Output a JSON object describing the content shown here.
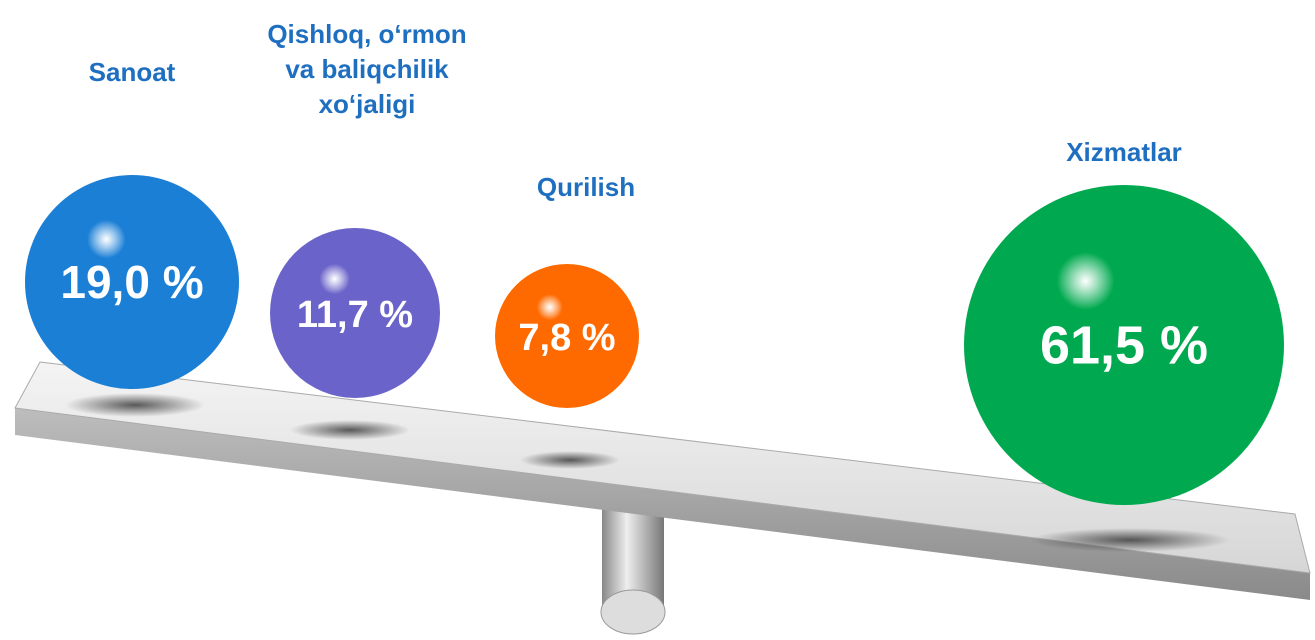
{
  "chart_data": {
    "type": "bubble",
    "categories": [
      "Sanoat",
      "Qishloq, o‘rmon va baliqchilik xo‘jaligi",
      "Qurilish",
      "Xizmatlar"
    ],
    "values": [
      19.0,
      11.7,
      7.8,
      61.5
    ],
    "value_labels": [
      "19,0 %",
      "11,7 %",
      "7,8 %",
      "61,5 %"
    ],
    "colors": [
      "#1b7fd6",
      "#6a63c9",
      "#ff6a00",
      "#00a94f"
    ]
  }
}
